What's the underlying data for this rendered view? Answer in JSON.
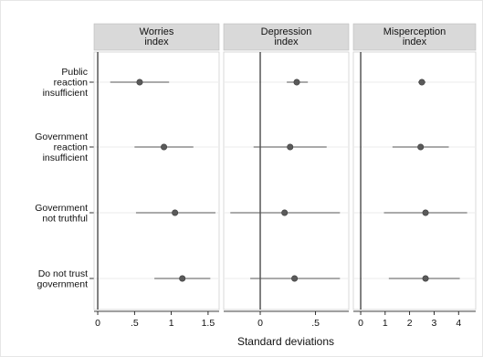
{
  "chart_data": {
    "type": "scatter",
    "subtype": "coefficient-plot-with-confidence-intervals",
    "xlabel": "Standard deviations",
    "categories": [
      [
        "Public",
        "reaction",
        "insufficient"
      ],
      [
        "Government",
        "reaction",
        "insufficient"
      ],
      [
        "Government",
        "not truthful"
      ],
      [
        "Do not trust",
        "government"
      ]
    ],
    "panels": [
      {
        "title": [
          "Worries",
          "index"
        ],
        "xlim": [
          -0.05,
          1.65
        ],
        "ticks": [
          0,
          0.5,
          1,
          1.5
        ],
        "tick_labels": [
          "0",
          ".5",
          "1",
          "1.5"
        ],
        "zero_line": 0,
        "points": [
          {
            "est": 0.57,
            "lo": 0.17,
            "hi": 0.97
          },
          {
            "est": 0.9,
            "lo": 0.5,
            "hi": 1.3
          },
          {
            "est": 1.05,
            "lo": 0.52,
            "hi": 1.6
          },
          {
            "est": 1.15,
            "lo": 0.77,
            "hi": 1.53
          }
        ]
      },
      {
        "title": [
          "Depression",
          "index"
        ],
        "xlim": [
          -0.33,
          0.8
        ],
        "ticks": [
          0,
          0.5
        ],
        "tick_labels": [
          "0",
          ".5"
        ],
        "zero_line": 0,
        "points": [
          {
            "est": 0.33,
            "lo": 0.24,
            "hi": 0.43
          },
          {
            "est": 0.27,
            "lo": -0.06,
            "hi": 0.6
          },
          {
            "est": 0.22,
            "lo": -0.27,
            "hi": 0.72
          },
          {
            "est": 0.31,
            "lo": -0.09,
            "hi": 0.72
          }
        ]
      },
      {
        "title": [
          "Misperception",
          "index"
        ],
        "xlim": [
          -0.3,
          4.7
        ],
        "ticks": [
          0,
          1,
          2,
          3,
          4
        ],
        "tick_labels": [
          "0",
          "1",
          "2",
          "3",
          "4"
        ],
        "zero_line": 0,
        "points": [
          {
            "est": 2.5,
            "lo": 2.35,
            "hi": 2.65
          },
          {
            "est": 2.45,
            "lo": 1.3,
            "hi": 3.6
          },
          {
            "est": 2.65,
            "lo": 0.95,
            "hi": 4.35
          },
          {
            "est": 2.65,
            "lo": 1.15,
            "hi": 4.05
          }
        ]
      }
    ],
    "grid": true,
    "legend": "none",
    "colors": {
      "header_fill": "#d9d9d9",
      "point": "#5a5a5a",
      "ci_line": "#555555",
      "gridline": "#e5e5e5"
    }
  }
}
